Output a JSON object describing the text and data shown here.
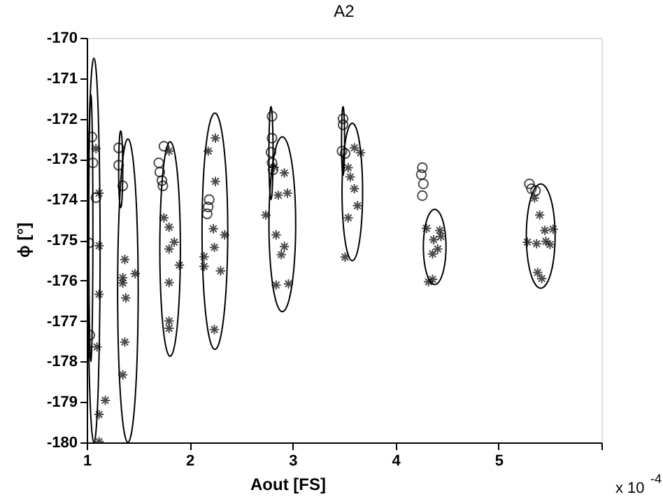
{
  "chart_data": {
    "type": "scatter",
    "title": "A2",
    "xlabel": "Aout      [FS]",
    "ylabel": "ϕ      [°]",
    "annotations": [
      "x 10$^{-4}$"
    ],
    "xlim": [
      1,
      6
    ],
    "xticks": [
      1,
      2,
      3,
      4,
      5,
      {
        "value": 6,
        "label": null
      }
    ],
    "ylim": [
      -180,
      -170
    ],
    "yticks": [
      -180,
      -179,
      -178,
      -177,
      -176,
      -175,
      -174,
      -173,
      -172,
      -171,
      -170
    ],
    "grid": false,
    "legend": false,
    "series": [
      {
        "type": "scatter",
        "marker": "circle",
        "color": "#000000",
        "x": [
          1.05,
          1.06,
          1.09,
          1.02,
          1.03,
          1.31,
          1.31,
          1.35,
          1.75,
          1.7,
          1.71,
          1.73,
          1.74,
          2.19,
          2.18,
          2.17,
          2.8,
          2.8,
          2.79,
          2.8,
          2.81,
          3.49,
          3.49,
          3.48,
          3.51,
          4.26,
          4.25,
          4.27,
          4.26,
          5.3,
          5.32,
          5.36
        ],
        "values": [
          -172.45,
          -173.09,
          -173.95,
          -175.07,
          -177.35,
          -172.72,
          -173.15,
          -173.66,
          -172.68,
          -173.09,
          -173.32,
          -173.53,
          -173.66,
          -174.0,
          -174.18,
          -174.35,
          -171.94,
          -172.48,
          -172.83,
          -173.09,
          -173.26,
          -172.0,
          -172.15,
          -172.8,
          -172.86,
          -173.21,
          -173.38,
          -173.61,
          -173.9,
          -173.61,
          -173.73,
          -173.78
        ]
      },
      {
        "type": "scatter",
        "marker": "cross",
        "color": "#000000",
        "x": [
          1.09,
          1.12,
          1.12,
          1.12,
          1.1,
          1.18,
          1.12,
          1.12,
          1.0,
          1.37,
          1.35,
          1.35,
          1.47,
          1.38,
          1.37,
          1.35,
          1.8,
          1.75,
          1.8,
          1.85,
          1.8,
          1.9,
          1.8,
          1.8,
          1.8,
          2.18,
          2.25,
          2.25,
          2.23,
          2.34,
          2.24,
          2.14,
          2.14,
          2.3,
          2.24,
          2.82,
          2.92,
          2.86,
          2.95,
          2.74,
          2.84,
          2.92,
          2.89,
          2.84,
          2.96,
          3.6,
          3.66,
          3.54,
          3.56,
          3.6,
          3.63,
          3.54,
          3.51,
          4.3,
          4.43,
          4.37,
          4.44,
          4.41,
          4.36,
          4.32,
          4.36,
          5.35,
          5.4,
          5.45,
          5.53,
          5.28,
          5.37,
          5.46,
          5.5,
          5.38,
          5.42
        ],
        "values": [
          -172.74,
          -173.84,
          -175.14,
          -176.34,
          -177.64,
          -178.96,
          -179.31,
          -179.98,
          -177.64,
          -175.48,
          -175.93,
          -176.06,
          -175.83,
          -176.43,
          -177.52,
          -178.33,
          -172.8,
          -174.45,
          -174.68,
          -175.05,
          -175.22,
          -175.62,
          -176.05,
          -177.0,
          -177.18,
          -172.8,
          -172.48,
          -173.55,
          -174.72,
          -174.87,
          -175.18,
          -175.41,
          -175.65,
          -175.76,
          -177.21,
          -173.2,
          -173.34,
          -173.89,
          -173.84,
          -174.38,
          -174.87,
          -175.16,
          -175.36,
          -176.11,
          -176.08,
          -172.72,
          -172.84,
          -173.21,
          -173.44,
          -173.73,
          -174.15,
          -174.45,
          -175.42,
          -174.71,
          -174.76,
          -174.99,
          -174.91,
          -175.22,
          -175.34,
          -176.03,
          -175.97,
          -173.96,
          -174.38,
          -174.76,
          -174.73,
          -175.05,
          -175.09,
          -175.03,
          -175.11,
          -175.8,
          -175.95
        ]
      }
    ]
  }
}
